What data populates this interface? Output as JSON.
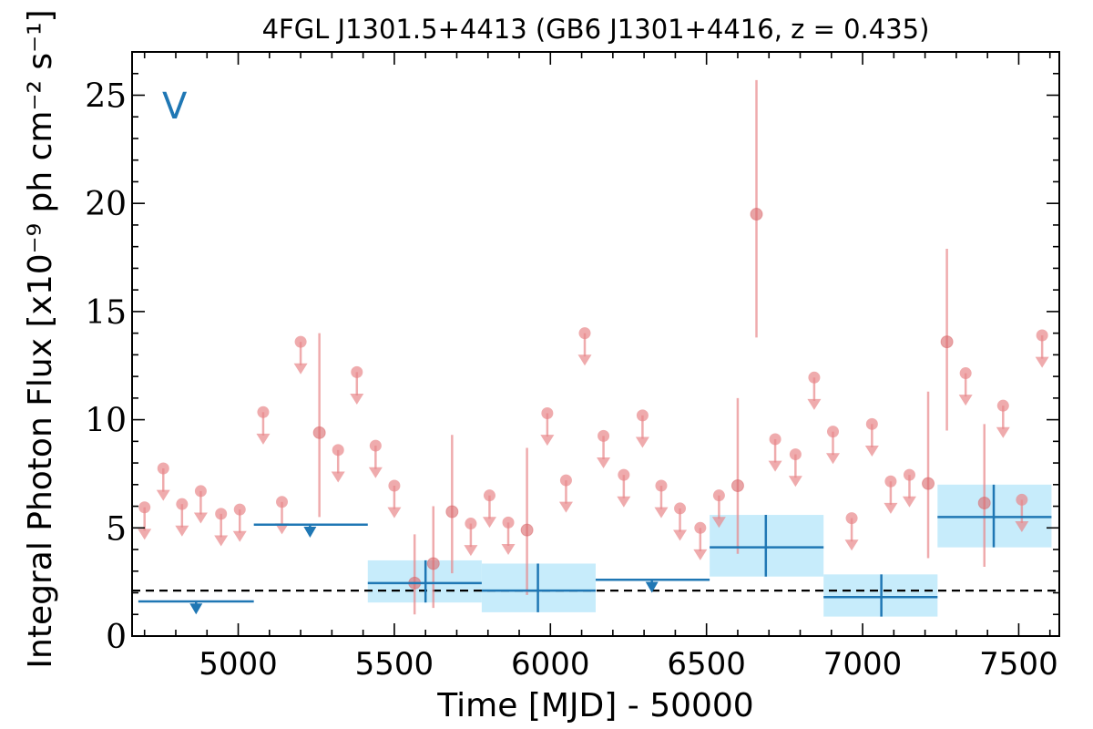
{
  "chart_data": {
    "type": "scatter",
    "title": "4FGL J1301.5+4413 (GB6 J1301+4416, z = 0.435)",
    "xlabel": "Time [MJD] - 50000",
    "ylabel": "Integral Photon Flux [x10⁻⁹ ph cm⁻² s⁻¹]",
    "panel_label": "V",
    "xlim": [
      4660,
      7630
    ],
    "ylim": [
      0,
      27
    ],
    "xticks": [
      5000,
      5500,
      6000,
      6500,
      7000,
      7500
    ],
    "yticks": [
      0,
      5,
      10,
      15,
      20,
      25
    ],
    "grid": false,
    "reference_line": 2.1,
    "colors": {
      "fine": "#e8888a",
      "coarse": "#1f77b4",
      "band": "#c7ecfb",
      "reference": "#000000"
    },
    "fine_detections": [
      {
        "x": 5260,
        "y": 9.4,
        "lo": 5.5,
        "hi": 14.0
      },
      {
        "x": 5565,
        "y": 2.45,
        "lo": 1.0,
        "hi": 4.7
      },
      {
        "x": 5625,
        "y": 3.35,
        "lo": 1.3,
        "hi": 6.0
      },
      {
        "x": 5685,
        "y": 5.75,
        "lo": 2.9,
        "hi": 9.3
      },
      {
        "x": 5925,
        "y": 4.9,
        "lo": 1.9,
        "hi": 8.7
      },
      {
        "x": 6600,
        "y": 6.95,
        "lo": 3.8,
        "hi": 11.0
      },
      {
        "x": 6660,
        "y": 19.5,
        "lo": 13.8,
        "hi": 25.7
      },
      {
        "x": 7210,
        "y": 7.05,
        "lo": 3.6,
        "hi": 11.3
      },
      {
        "x": 7270,
        "y": 13.6,
        "lo": 9.5,
        "hi": 17.9
      },
      {
        "x": 7390,
        "y": 6.15,
        "lo": 3.2,
        "hi": 9.8
      }
    ],
    "fine_upper_limits": [
      {
        "x": 4700,
        "y": 5.95
      },
      {
        "x": 4760,
        "y": 7.75
      },
      {
        "x": 4820,
        "y": 6.1
      },
      {
        "x": 4880,
        "y": 6.7
      },
      {
        "x": 4945,
        "y": 5.65
      },
      {
        "x": 5005,
        "y": 5.85
      },
      {
        "x": 5080,
        "y": 10.35
      },
      {
        "x": 5140,
        "y": 6.2
      },
      {
        "x": 5200,
        "y": 13.6
      },
      {
        "x": 5320,
        "y": 8.6
      },
      {
        "x": 5380,
        "y": 12.2
      },
      {
        "x": 5440,
        "y": 8.8
      },
      {
        "x": 5500,
        "y": 6.95
      },
      {
        "x": 5745,
        "y": 5.2
      },
      {
        "x": 5805,
        "y": 6.5
      },
      {
        "x": 5865,
        "y": 5.25
      },
      {
        "x": 5990,
        "y": 10.3
      },
      {
        "x": 6050,
        "y": 7.2
      },
      {
        "x": 6110,
        "y": 14.0
      },
      {
        "x": 6170,
        "y": 9.25
      },
      {
        "x": 6235,
        "y": 7.45
      },
      {
        "x": 6295,
        "y": 10.2
      },
      {
        "x": 6355,
        "y": 6.95
      },
      {
        "x": 6415,
        "y": 5.9
      },
      {
        "x": 6480,
        "y": 5.0
      },
      {
        "x": 6540,
        "y": 6.5
      },
      {
        "x": 6720,
        "y": 9.1
      },
      {
        "x": 6785,
        "y": 8.4
      },
      {
        "x": 6845,
        "y": 11.95
      },
      {
        "x": 6905,
        "y": 9.45
      },
      {
        "x": 6965,
        "y": 5.45
      },
      {
        "x": 7030,
        "y": 9.8
      },
      {
        "x": 7090,
        "y": 7.15
      },
      {
        "x": 7150,
        "y": 7.45
      },
      {
        "x": 7330,
        "y": 12.15
      },
      {
        "x": 7450,
        "y": 10.65
      },
      {
        "x": 7510,
        "y": 6.3
      },
      {
        "x": 7575,
        "y": 13.9
      }
    ],
    "coarse_detections": [
      {
        "x0": 5415,
        "x1": 5780,
        "xc": 5600,
        "y": 2.45,
        "lo": 1.55,
        "hi": 3.5
      },
      {
        "x0": 5780,
        "x1": 6145,
        "xc": 5960,
        "y": 2.1,
        "lo": 1.1,
        "hi": 3.35
      },
      {
        "x0": 6510,
        "x1": 6875,
        "xc": 6690,
        "y": 4.1,
        "lo": 2.75,
        "hi": 5.6
      },
      {
        "x0": 6875,
        "x1": 7240,
        "xc": 7060,
        "y": 1.8,
        "lo": 0.9,
        "hi": 2.85
      },
      {
        "x0": 7240,
        "x1": 7605,
        "xc": 7420,
        "y": 5.5,
        "lo": 4.1,
        "hi": 7.0
      }
    ],
    "coarse_upper_limits": [
      {
        "x0": 4680,
        "x1": 5050,
        "xc": 4865,
        "y": 1.6
      },
      {
        "x0": 5050,
        "x1": 5415,
        "xc": 5230,
        "y": 5.15
      },
      {
        "x0": 6145,
        "x1": 6510,
        "xc": 6325,
        "y": 2.6
      }
    ]
  }
}
